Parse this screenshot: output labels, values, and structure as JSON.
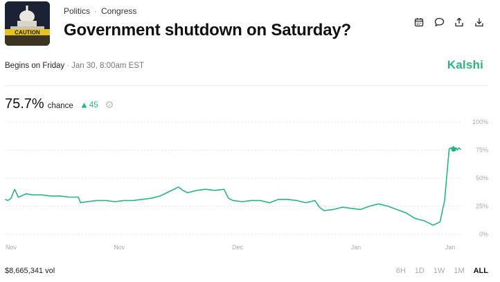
{
  "market": {
    "category": "Politics",
    "subcategory": "Congress",
    "title": "Government shutdown on Saturday?",
    "begins_label": "Begins on Friday",
    "begins_date": "Jan 30, 8:00am EST",
    "brand": "Kalshi"
  },
  "thumbnail": {
    "caption_text": "CAUTION"
  },
  "toolbar": {
    "icons": [
      "calendar-icon",
      "comment-icon",
      "share-icon",
      "download-icon"
    ]
  },
  "probability": {
    "value": "75.7%",
    "label": "chance",
    "delta": "45"
  },
  "volume": "$8,665,341 vol",
  "ranges": [
    "6H",
    "1D",
    "1W",
    "1M",
    "ALL"
  ],
  "active_range": "ALL",
  "colors": {
    "accent": "#27b57e",
    "grid": "#e4e4e4",
    "axis_text": "#aaaaaa"
  },
  "chart_data": {
    "type": "line",
    "y_ticks": [
      "100%",
      "75%",
      "50%",
      "25%",
      "0%"
    ],
    "ylim": [
      0,
      100
    ],
    "x_tick_labels": [
      "Nov",
      "Nov",
      "Dec",
      "Jan",
      "Jan"
    ],
    "x_tick_positions": [
      0,
      0.25,
      0.51,
      0.77,
      1.0
    ],
    "series": [
      {
        "x": [
          0,
          0.005,
          0.012,
          0.02,
          0.028,
          0.035,
          0.045,
          0.06,
          0.08,
          0.1,
          0.12,
          0.14,
          0.16,
          0.165,
          0.18,
          0.2,
          0.22,
          0.24,
          0.26,
          0.28,
          0.3,
          0.32,
          0.34,
          0.36,
          0.38,
          0.39,
          0.4,
          0.42,
          0.44,
          0.46,
          0.48,
          0.49,
          0.5,
          0.52,
          0.54,
          0.56,
          0.58,
          0.6,
          0.62,
          0.64,
          0.66,
          0.68,
          0.69,
          0.7,
          0.72,
          0.74,
          0.76,
          0.78,
          0.8,
          0.82,
          0.84,
          0.86,
          0.88,
          0.9,
          0.92,
          0.93,
          0.94,
          0.955,
          0.965,
          0.975,
          0.98,
          0.982,
          0.984,
          0.987,
          0.99,
          0.993,
          0.996,
          1.0
        ],
        "values": [
          31,
          30,
          32,
          40,
          33,
          34,
          36,
          35,
          35,
          34,
          34,
          33,
          33,
          28,
          29,
          30,
          30,
          29,
          30,
          30,
          31,
          32,
          34,
          38,
          42,
          39,
          37,
          39,
          40,
          39,
          40,
          32,
          30,
          29,
          30,
          30,
          28,
          31,
          31,
          30,
          28,
          30,
          24,
          21,
          22,
          24,
          23,
          22,
          25,
          27,
          25,
          22,
          19,
          14,
          12,
          10,
          8,
          11,
          30,
          76,
          77,
          75,
          78,
          76,
          77,
          75,
          77,
          75.7
        ]
      }
    ]
  }
}
